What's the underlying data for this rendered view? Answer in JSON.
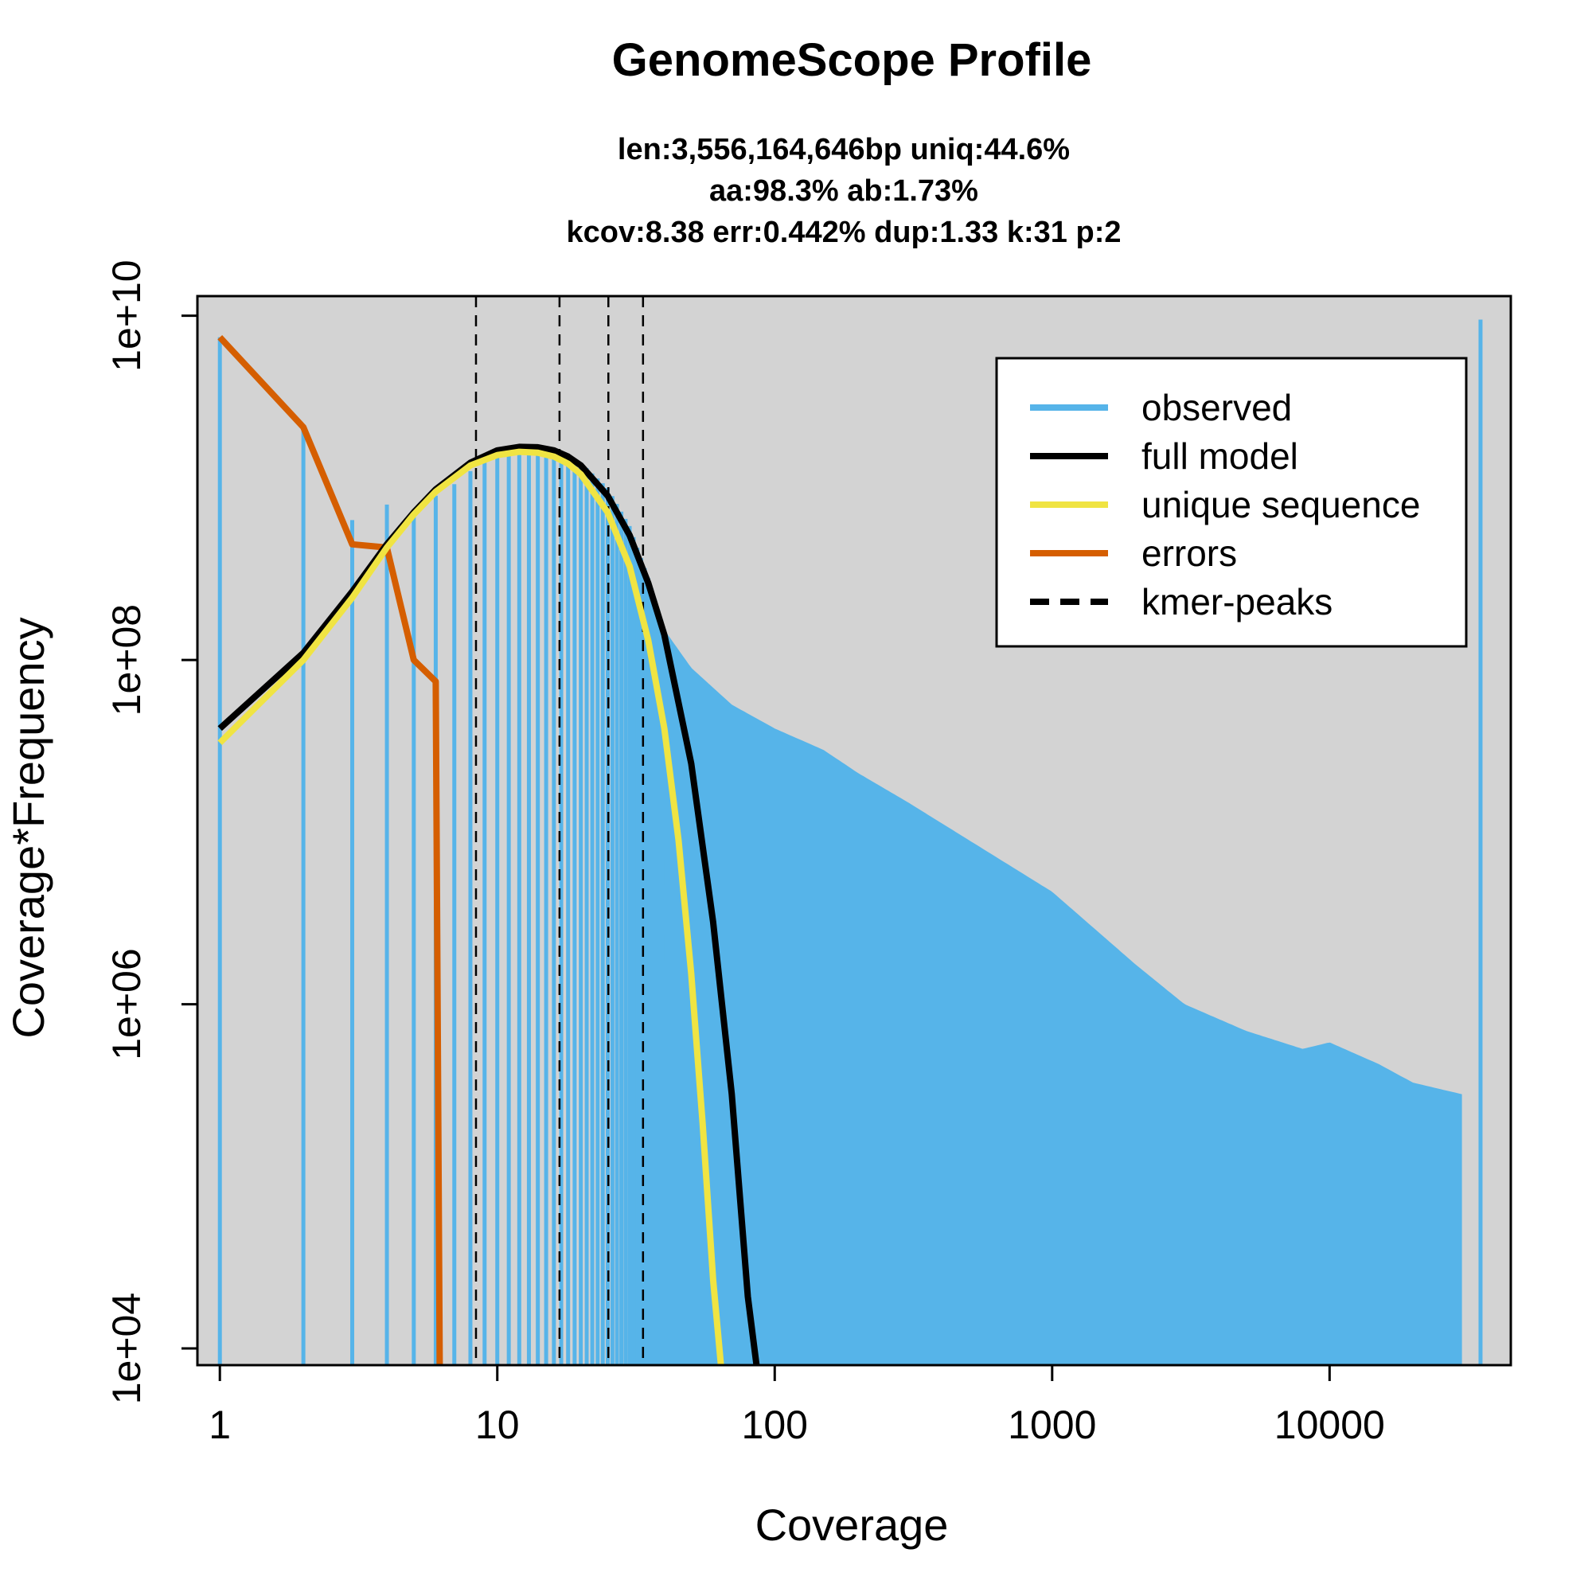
{
  "chart_data": {
    "type": "line",
    "title": "GenomeScope Profile",
    "subtitle_lines": [
      "len:3,556,164,646bp uniq:44.6%",
      "aa:98.3% ab:1.73%",
      "kcov:8.38 err:0.442%  dup:1.33  k:31 p:2"
    ],
    "xlabel": "Coverage",
    "ylabel": "Coverage*Frequency",
    "x_scale": "log",
    "y_scale": "log",
    "xlim": [
      0.83,
      45000
    ],
    "ylim": [
      8000,
      13000000000
    ],
    "x_ticks": [
      1,
      10,
      100,
      1000,
      10000
    ],
    "x_tick_labels": [
      "1",
      "10",
      "100",
      "1000",
      "10000"
    ],
    "y_ticks": [
      10000,
      1000000,
      100000000,
      10000000000
    ],
    "y_tick_labels": [
      "1e+04",
      "1e+06",
      "1e+08",
      "1e+10"
    ],
    "background": "#d3d3d3",
    "grid": false,
    "legend_position": "top-right",
    "legend": [
      {
        "label": "observed",
        "color": "#56b4e9",
        "style": "solid"
      },
      {
        "label": "full model",
        "color": "#000000",
        "style": "solid"
      },
      {
        "label": "unique sequence",
        "color": "#f0e442",
        "style": "solid"
      },
      {
        "label": "errors",
        "color": "#d55e00",
        "style": "solid"
      },
      {
        "label": "kmer-peaks",
        "color": "#000000",
        "style": "dashed"
      }
    ],
    "kmer_peaks": [
      8.38,
      16.76,
      25.14,
      33.52
    ],
    "series": [
      {
        "name": "observed",
        "color": "#56b4e9",
        "style": "histogram",
        "x": [
          1,
          2,
          3,
          4,
          5,
          6,
          7,
          8,
          9,
          10,
          12,
          14,
          16,
          18,
          20,
          25,
          30,
          35,
          40,
          50,
          70,
          100,
          150,
          200,
          300,
          500,
          1000,
          2000,
          3000,
          5000,
          8000,
          10000,
          15000,
          20000,
          30000,
          35000
        ],
        "y": [
          7500000000,
          2200000000,
          650000000,
          800000000,
          720000000,
          900000000,
          1050000000,
          1250000000,
          1400000000,
          1500000000,
          1600000000,
          1650000000,
          1620000000,
          1550000000,
          1400000000,
          1000000000,
          600000000,
          300000000,
          150000000,
          90000000,
          55000000,
          40000000,
          30000000,
          22000000,
          15000000,
          9000000,
          4500000,
          1700000,
          1000000,
          700000,
          550000,
          600000,
          450000,
          350000,
          300000,
          9500000000
        ]
      },
      {
        "name": "full model",
        "color": "#000000",
        "x": [
          1,
          2,
          3,
          4,
          5,
          6,
          8,
          10,
          12,
          14,
          16,
          18,
          20,
          25,
          30,
          35,
          40,
          50,
          60,
          70,
          80,
          86
        ],
        "y": [
          40000000,
          110000000,
          250000000,
          470000000,
          720000000,
          980000000,
          1400000000,
          1650000000,
          1730000000,
          1720000000,
          1650000000,
          1520000000,
          1350000000,
          900000000,
          530000000,
          280000000,
          140000000,
          25000000,
          3000000,
          300000,
          20000,
          8000
        ]
      },
      {
        "name": "unique sequence",
        "color": "#f0e442",
        "x": [
          1,
          2,
          3,
          4,
          5,
          6,
          8,
          10,
          12,
          14,
          16,
          18,
          20,
          25,
          30,
          35,
          40,
          45,
          50,
          55,
          60,
          64
        ],
        "y": [
          33000000,
          100000000,
          230000000,
          450000000,
          700000000,
          950000000,
          1350000000,
          1550000000,
          1620000000,
          1600000000,
          1520000000,
          1380000000,
          1200000000,
          720000000,
          350000000,
          130000000,
          40000000,
          9000000,
          1500000,
          200000,
          25000,
          8000
        ]
      },
      {
        "name": "errors",
        "color": "#d55e00",
        "x": [
          1,
          2,
          3,
          4,
          5,
          6,
          6.2
        ],
        "y": [
          7500000000,
          2250000000,
          470000000,
          450000000,
          100000000,
          75000000,
          8000
        ]
      }
    ]
  }
}
